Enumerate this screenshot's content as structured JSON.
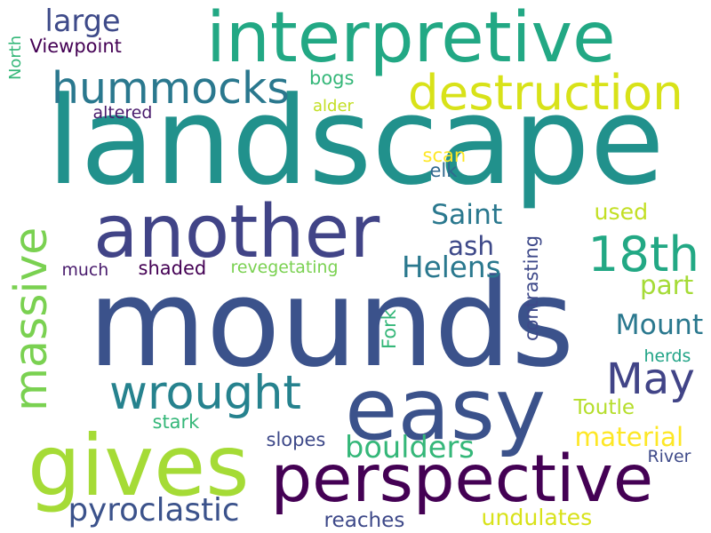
{
  "words": [
    {
      "text": "landscape",
      "color": "#21918c"
    },
    {
      "text": "mounds",
      "color": "#3b528b"
    },
    {
      "text": "interpretive",
      "color": "#22a884"
    },
    {
      "text": "easy",
      "color": "#3b528b"
    },
    {
      "text": "another",
      "color": "#414487"
    },
    {
      "text": "perspective",
      "color": "#440154"
    },
    {
      "text": "gives",
      "color": "#a5db36"
    },
    {
      "text": "destruction",
      "color": "#d8e219"
    },
    {
      "text": "hummocks",
      "color": "#2a788e"
    },
    {
      "text": "wrought",
      "color": "#26828e"
    },
    {
      "text": "18th",
      "color": "#22a884"
    },
    {
      "text": "May",
      "color": "#414487"
    },
    {
      "text": "massive",
      "color": "#7ad151"
    },
    {
      "text": "large",
      "color": "#3e4a89"
    },
    {
      "text": "pyroclastic",
      "color": "#3b528b"
    },
    {
      "text": "boulders",
      "color": "#35b779"
    },
    {
      "text": "material",
      "color": "#fde725"
    },
    {
      "text": "Mount",
      "color": "#2a788e"
    },
    {
      "text": "Helens",
      "color": "#2a788e"
    },
    {
      "text": "Saint",
      "color": "#2a788e"
    },
    {
      "text": "undulates",
      "color": "#d8e219"
    },
    {
      "text": "used",
      "color": "#c2df23"
    },
    {
      "text": "part",
      "color": "#a5db36"
    },
    {
      "text": "ash",
      "color": "#3e4989"
    },
    {
      "text": "revegetating",
      "color": "#7ad151"
    },
    {
      "text": "shaded",
      "color": "#440154"
    },
    {
      "text": "much",
      "color": "#481a6c"
    },
    {
      "text": "Viewpoint",
      "color": "#440154"
    },
    {
      "text": "altered",
      "color": "#481a6c"
    },
    {
      "text": "bogs",
      "color": "#35b779"
    },
    {
      "text": "alder",
      "color": "#c2df23"
    },
    {
      "text": "scan",
      "color": "#fde725"
    },
    {
      "text": "elk",
      "color": "#31688e"
    },
    {
      "text": "contrasting",
      "color": "#3e4989"
    },
    {
      "text": "Fork",
      "color": "#35b779"
    },
    {
      "text": "herds",
      "color": "#20a386"
    },
    {
      "text": "Toutle",
      "color": "#b5de2b"
    },
    {
      "text": "River",
      "color": "#3e4a89"
    },
    {
      "text": "stark",
      "color": "#35b779"
    },
    {
      "text": "slopes",
      "color": "#3e4989"
    },
    {
      "text": "reaches",
      "color": "#3e4989"
    },
    {
      "text": "North",
      "color": "#35b779"
    }
  ]
}
